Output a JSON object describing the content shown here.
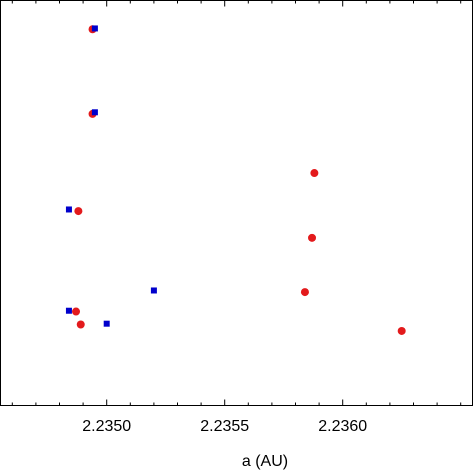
{
  "chart_data": {
    "type": "scatter",
    "title": "",
    "xlabel": "a (AU)",
    "ylabel": "",
    "xlim": [
      2.23455,
      2.23655
    ],
    "ylim": [
      0,
      1
    ],
    "x_ticks": [
      {
        "value": 2.235,
        "label": "2.2350"
      },
      {
        "value": 2.2355,
        "label": "2.2355"
      },
      {
        "value": 2.236,
        "label": "2.2360"
      }
    ],
    "grid": false,
    "legend": "none",
    "series": [
      {
        "marker": "circle",
        "color": "#e31a1c",
        "points": [
          {
            "x": 2.23494,
            "y": 0.929
          },
          {
            "x": 2.23494,
            "y": 0.72
          },
          {
            "x": 2.23488,
            "y": 0.48
          },
          {
            "x": 2.23487,
            "y": 0.232
          },
          {
            "x": 2.23489,
            "y": 0.2
          },
          {
            "x": 2.23588,
            "y": 0.574
          },
          {
            "x": 2.23587,
            "y": 0.414
          },
          {
            "x": 2.23584,
            "y": 0.28
          },
          {
            "x": 2.23625,
            "y": 0.184
          }
        ]
      },
      {
        "marker": "square",
        "color": "#0000cc",
        "points": [
          {
            "x": 2.23495,
            "y": 0.931
          },
          {
            "x": 2.23495,
            "y": 0.724
          },
          {
            "x": 2.23484,
            "y": 0.484
          },
          {
            "x": 2.23484,
            "y": 0.234
          },
          {
            "x": 2.235,
            "y": 0.202
          },
          {
            "x": 2.2352,
            "y": 0.284
          }
        ]
      }
    ]
  }
}
